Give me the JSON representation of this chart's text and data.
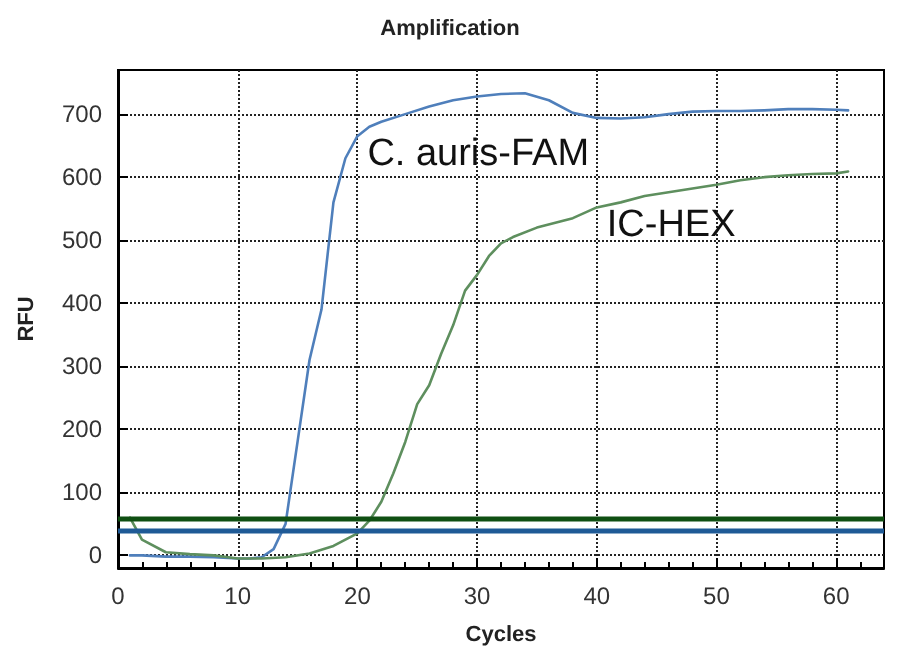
{
  "chart_data": {
    "type": "line",
    "title": "Amplification",
    "xlabel": "Cycles",
    "ylabel": "RFU",
    "xlim": [
      0,
      64
    ],
    "xticks": [
      0,
      10,
      20,
      30,
      40,
      50,
      60
    ],
    "ylim": [
      -20,
      770
    ],
    "yticks": [
      0,
      100,
      200,
      300,
      400,
      500,
      600,
      700
    ],
    "grid": true,
    "legend": false,
    "marker": "none",
    "line_style": "solid",
    "series": [
      {
        "name": "C. auris-FAM",
        "color": "#4f7fbb",
        "x": [
          1,
          2,
          4,
          6,
          8,
          10,
          11,
          12,
          13,
          14,
          15,
          16,
          17,
          18,
          19,
          20,
          21,
          22,
          24,
          26,
          28,
          30,
          32,
          34,
          36,
          38,
          40,
          42,
          44,
          46,
          48,
          50,
          52,
          54,
          56,
          58,
          60,
          61
        ],
        "values": [
          0,
          0,
          -2,
          -2,
          -3,
          -5,
          -5,
          -3,
          10,
          50,
          180,
          310,
          390,
          560,
          630,
          665,
          680,
          688,
          700,
          712,
          722,
          728,
          732,
          733,
          722,
          702,
          694,
          693,
          695,
          700,
          704,
          705,
          705,
          706,
          708,
          708,
          707,
          706
        ]
      },
      {
        "name": "IC-HEX",
        "color": "#5e8f5e",
        "x": [
          1,
          2,
          4,
          6,
          8,
          10,
          12,
          14,
          16,
          18,
          20,
          21,
          22,
          23,
          24,
          25,
          26,
          27,
          28,
          29,
          30,
          31,
          32,
          33,
          35,
          38,
          40,
          42,
          44,
          46,
          48,
          50,
          52,
          54,
          56,
          58,
          60,
          61
        ],
        "values": [
          60,
          25,
          5,
          2,
          0,
          -5,
          -5,
          -3,
          3,
          15,
          35,
          55,
          85,
          130,
          180,
          240,
          270,
          320,
          365,
          420,
          445,
          475,
          495,
          505,
          520,
          535,
          552,
          560,
          570,
          576,
          582,
          588,
          595,
          600,
          603,
          605,
          606,
          609
        ]
      }
    ],
    "ref_lines": [
      {
        "axis": "y",
        "value": 60,
        "color": "#0f4f12"
      },
      {
        "axis": "y",
        "value": 38,
        "color": "#1f5a96"
      }
    ]
  }
}
